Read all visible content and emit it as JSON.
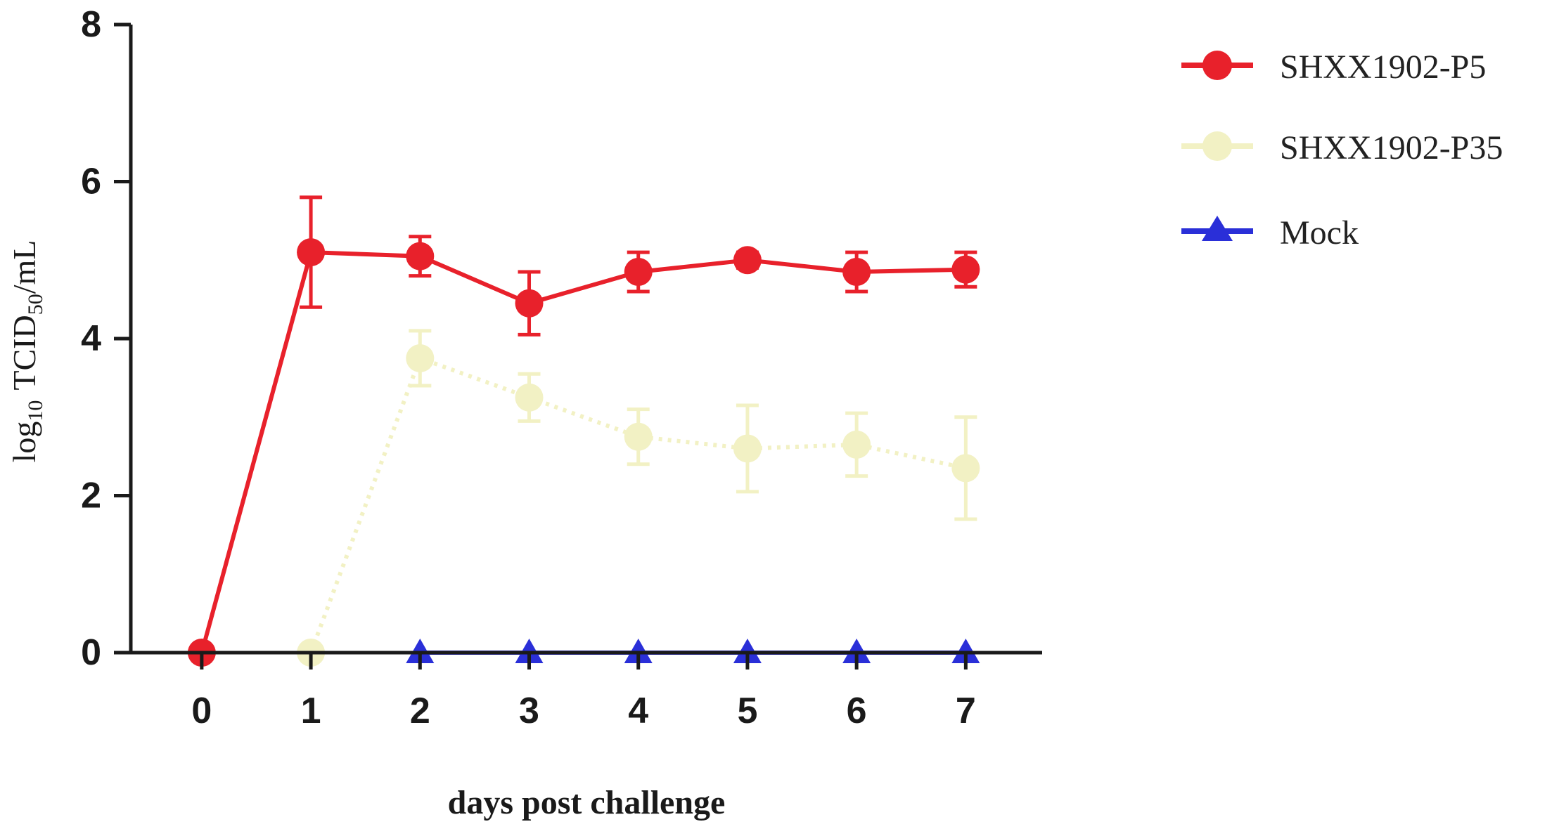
{
  "chart_data": {
    "type": "line",
    "x": [
      0,
      1,
      2,
      3,
      4,
      5,
      6,
      7
    ],
    "x_tick_labels": [
      "0",
      "1",
      "2",
      "3",
      "4",
      "5",
      "6",
      "7"
    ],
    "y_ticks": [
      0,
      2,
      4,
      6,
      8
    ],
    "y_tick_labels": [
      "0",
      "2",
      "4",
      "6",
      "8"
    ],
    "xlim": [
      -0.65,
      7.7
    ],
    "ylim": [
      0,
      8
    ],
    "xlabel": "days post challenge",
    "ylabel": {
      "prefix": "log",
      "prefix_sub": "10",
      "main": "TCID",
      "main_sub": "50",
      "suffix": "/mL"
    },
    "grid": false,
    "legend_position": "top-right",
    "series": [
      {
        "name": "SHXX1902-P5",
        "color": "#e8212b",
        "marker": "circle",
        "line_style": "solid",
        "values": [
          0,
          5.1,
          5.05,
          4.45,
          4.85,
          5.0,
          4.85,
          4.88
        ],
        "errors": [
          0,
          0.7,
          0.25,
          0.4,
          0.25,
          0.1,
          0.25,
          0.22
        ]
      },
      {
        "name": "SHXX1902-P35",
        "color": "#f2f1c4",
        "marker": "circle",
        "line_style": "dotted",
        "values": [
          null,
          0,
          3.75,
          3.25,
          2.75,
          2.6,
          2.65,
          2.35
        ],
        "errors": [
          0,
          0,
          0.35,
          0.3,
          0.35,
          0.55,
          0.4,
          0.65
        ]
      },
      {
        "name": "Mock",
        "color": "#2a2fd8",
        "marker": "triangle",
        "line_style": "solid",
        "values": [
          null,
          null,
          0,
          0,
          0,
          0,
          0,
          0
        ],
        "errors": [
          0,
          0,
          0,
          0,
          0,
          0,
          0,
          0
        ]
      }
    ]
  }
}
